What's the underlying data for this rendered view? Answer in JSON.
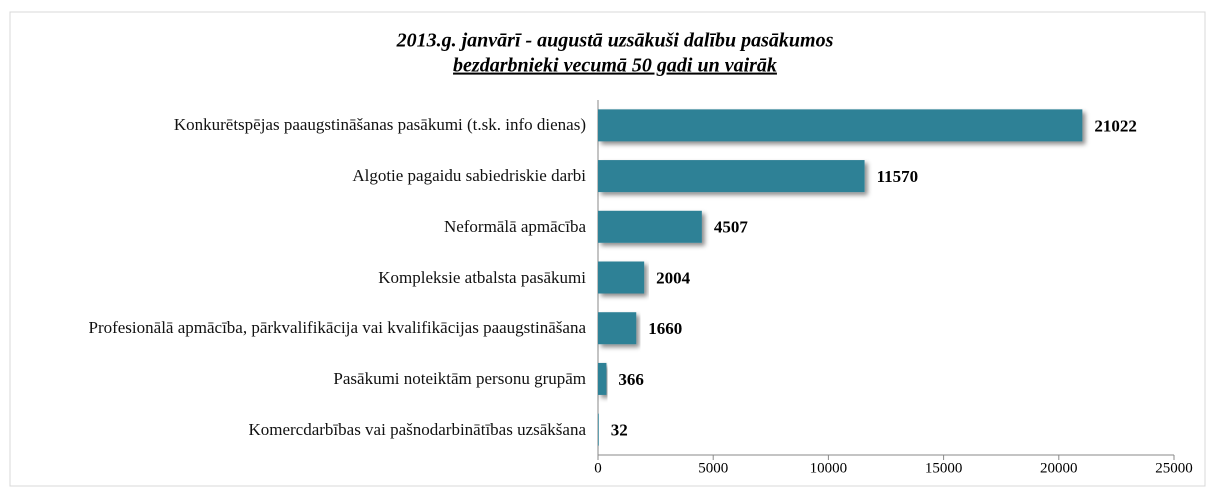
{
  "chart_data": {
    "type": "bar",
    "orientation": "horizontal",
    "title": "2013.g. janvārī - augustā uzsākuši dalību pasākumos",
    "subtitle": "bezdarbnieki vecumā 50 gadi un vairāk",
    "categories": [
      "Konkurētspējas paaugstināšanas pasākumi (t.sk. info dienas)",
      "Algotie pagaidu sabiedriskie darbi",
      "Neformālā apmācība",
      "Kompleksie atbalsta pasākumi",
      "Profesionālā apmācība, pārkvalifikācija vai kvalifikācijas paaugstināšana",
      "Pasākumi noteiktām personu grupām",
      "Komercdarbības vai pašnodarbinātības uzsākšana"
    ],
    "values": [
      21022,
      11570,
      4507,
      2004,
      1660,
      366,
      32
    ],
    "color": "#2e8196",
    "xlim": [
      0,
      25000
    ],
    "xticks": [
      0,
      5000,
      10000,
      15000,
      20000,
      25000
    ],
    "grid": false
  }
}
